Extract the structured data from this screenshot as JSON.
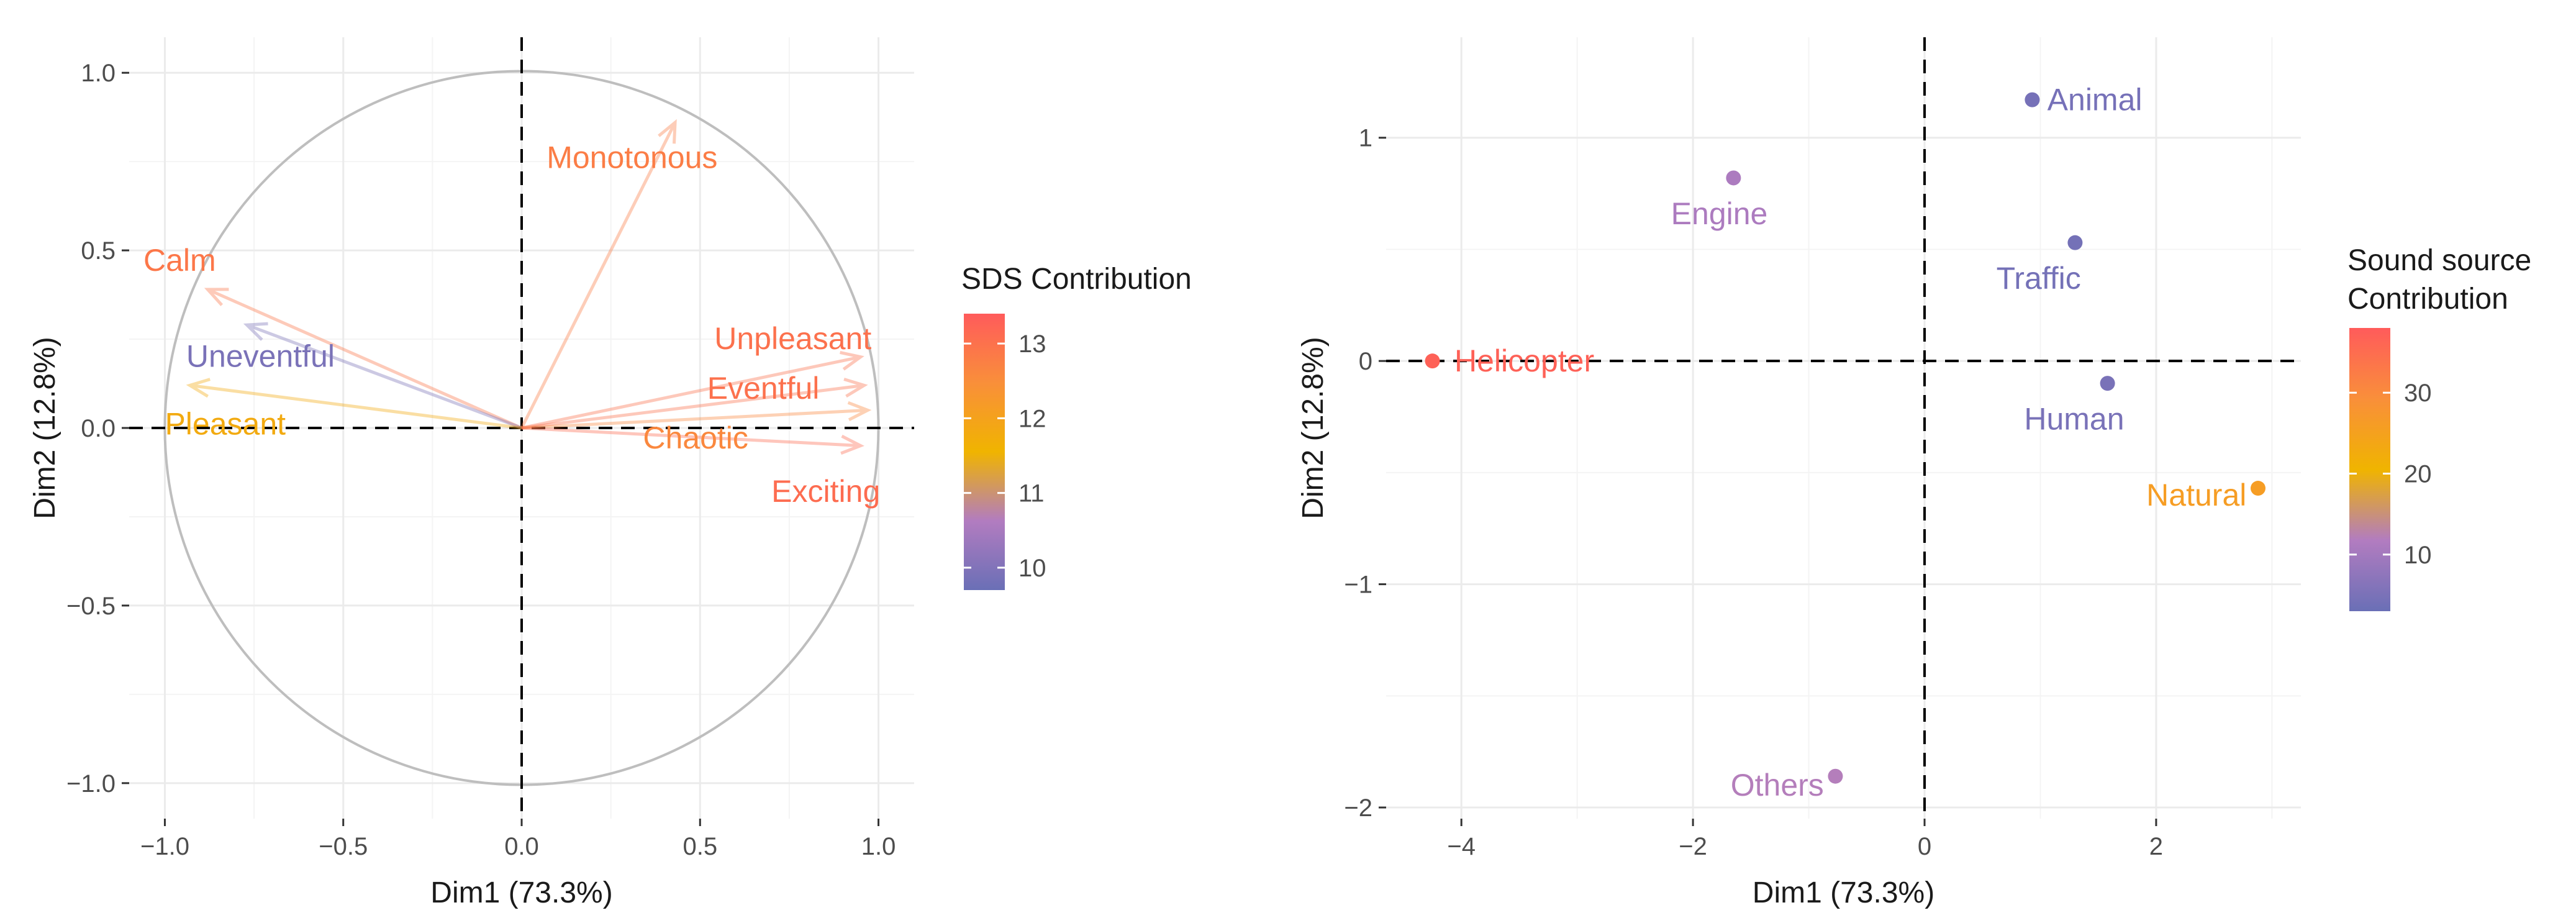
{
  "palette": {
    "low": "#6a6fb6",
    "lowmid": "#b27cc0",
    "mid": "#f0b400",
    "midhigh": "#f98f3a",
    "high": "#ff5b5b"
  },
  "chart_data": [
    {
      "type": "scatter",
      "subtype": "correlation-circle",
      "title": "",
      "xlabel": "Dim1 (73.3%)",
      "ylabel": "Dim2 (12.8%)",
      "xlim": [
        -1.1,
        1.1
      ],
      "ylim": [
        -1.1,
        1.1
      ],
      "xticks": [
        -1.0,
        -0.5,
        0.0,
        0.5,
        1.0
      ],
      "yticks": [
        -1.0,
        -0.5,
        0.0,
        0.5,
        1.0
      ],
      "xtick_labels": [
        "−1.0",
        "−0.5",
        "0.0",
        "0.5",
        "1.0"
      ],
      "ytick_labels": [
        "−1.0",
        "−0.5",
        "0.0",
        "0.5",
        "1.0"
      ],
      "grid": true,
      "unit_circle": true,
      "legend": {
        "title": "SDS Contribution",
        "placement": "right",
        "range": [
          9.7,
          13.4
        ],
        "ticks": [
          10,
          11,
          12,
          13
        ],
        "tick_labels": [
          "10",
          "11",
          "12",
          "13"
        ]
      },
      "points": [
        {
          "label": "Monotonous",
          "x": 0.43,
          "y": 0.86,
          "contribution": 12.8,
          "label_x": 0.07,
          "label_y": 0.76
        },
        {
          "label": "Calm",
          "x": -0.88,
          "y": 0.39,
          "contribution": 12.9,
          "label_x": -1.06,
          "label_y": 0.47
        },
        {
          "label": "Uneventful",
          "x": -0.77,
          "y": 0.29,
          "contribution": 9.9,
          "label_x": -0.94,
          "label_y": 0.2
        },
        {
          "label": "Pleasant",
          "x": -0.93,
          "y": 0.12,
          "contribution": 11.8,
          "label_x": -1.0,
          "label_y": 0.01
        },
        {
          "label": "Unpleasant",
          "x": 0.95,
          "y": 0.2,
          "contribution": 13.0,
          "label_x": 0.54,
          "label_y": 0.25
        },
        {
          "label": "Eventful",
          "x": 0.96,
          "y": 0.12,
          "contribution": 13.0,
          "label_x": 0.52,
          "label_y": 0.11
        },
        {
          "label": "Chaotic",
          "x": 0.97,
          "y": 0.05,
          "contribution": 12.6,
          "label_x": 0.34,
          "label_y": -0.03
        },
        {
          "label": "Exciting",
          "x": 0.95,
          "y": -0.05,
          "contribution": 13.1,
          "label_x": 0.7,
          "label_y": -0.18
        }
      ]
    },
    {
      "type": "scatter",
      "title": "",
      "xlabel": "Dim1 (73.3%)",
      "ylabel": "Dim2 (12.8%)",
      "xlim": [
        -4.65,
        3.25
      ],
      "ylim": [
        -2.05,
        1.45
      ],
      "xticks": [
        -4,
        -2,
        0,
        2
      ],
      "yticks": [
        -2,
        -1,
        0,
        1
      ],
      "xtick_labels": [
        "−4",
        "−2",
        "0",
        "2"
      ],
      "ytick_labels": [
        "−2",
        "−1",
        "0",
        "1"
      ],
      "grid": true,
      "legend": {
        "title_lines": [
          "Sound source",
          "Contribution"
        ],
        "placement": "right",
        "range": [
          3,
          38
        ],
        "ticks": [
          10,
          20,
          30
        ],
        "tick_labels": [
          "10",
          "20",
          "30"
        ]
      },
      "points": [
        {
          "label": "Animal",
          "x": 0.93,
          "y": 1.17,
          "contribution": 4.5,
          "label_x": 1.06,
          "label_y": 1.17,
          "anchor": "start"
        },
        {
          "label": "Engine",
          "x": -1.65,
          "y": 0.82,
          "contribution": 11.0,
          "label_x": -2.19,
          "label_y": 0.66,
          "anchor": "start"
        },
        {
          "label": "Traffic",
          "x": 1.3,
          "y": 0.53,
          "contribution": 4.2,
          "label_x": 0.62,
          "label_y": 0.37,
          "anchor": "start"
        },
        {
          "label": "Helicopter",
          "x": -4.25,
          "y": 0.0,
          "contribution": 37.0,
          "label_x": -4.06,
          "label_y": 0.0,
          "anchor": "start"
        },
        {
          "label": "Human",
          "x": 1.58,
          "y": -0.1,
          "contribution": 4.8,
          "label_x": 0.86,
          "label_y": -0.26,
          "anchor": "start"
        },
        {
          "label": "Natural",
          "x": 2.88,
          "y": -0.57,
          "contribution": 26.0,
          "label_x": 2.78,
          "label_y": -0.6,
          "anchor": "end"
        },
        {
          "label": "Others",
          "x": -0.77,
          "y": -1.86,
          "contribution": 12.0,
          "label_x": -0.87,
          "label_y": -1.9,
          "anchor": "end"
        }
      ]
    }
  ]
}
